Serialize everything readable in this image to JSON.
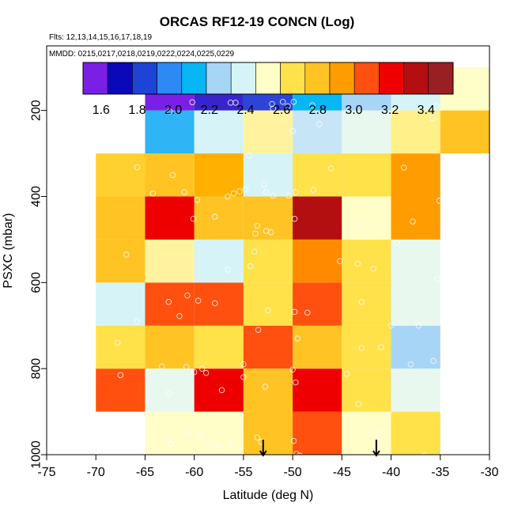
{
  "chart_data": {
    "type": "heatmap",
    "title": "ORCAS RF12-19 CONCN (Log)",
    "flights_label": "Flts: 12,13,14,15,16,17,18,19",
    "dates_label": "MMDD: 0215,0217,0218,0219,0222,0224,0225,0229",
    "xlabel": "Latitude (deg N)",
    "ylabel": "PSXC (mbar)",
    "xlim": [
      -75,
      -30
    ],
    "ylim": [
      1000,
      50
    ],
    "x_ticks": [
      -75,
      -70,
      -65,
      -60,
      -55,
      -50,
      -45,
      -40,
      -35,
      -30
    ],
    "x_tick_labels": [
      "-75",
      "-70",
      "-65",
      "-60",
      "-55",
      "-50",
      "-45",
      "-40",
      "-35",
      "-30"
    ],
    "y_ticks": [
      200,
      400,
      600,
      800,
      1000
    ],
    "y_tick_labels": [
      "200",
      "400",
      "600",
      "800",
      "1000"
    ],
    "colorbar": {
      "colors": [
        "#7a1fe6",
        "#0a08b8",
        "#1d44d6",
        "#2d8af5",
        "#06b6f5",
        "#a7d5f6",
        "#d6f3f8",
        "#fffdc8",
        "#ffe14a",
        "#ffc424",
        "#ff9d00",
        "#ff5010",
        "#ee0000",
        "#b30e10",
        "#9a1f22"
      ],
      "tick_values": [
        1.6,
        1.8,
        2.0,
        2.2,
        2.4,
        2.6,
        2.8,
        3.0,
        3.2,
        3.4
      ],
      "tick_labels": [
        "1.6",
        "1.8",
        "2.0",
        "2.2",
        "2.4",
        "2.6",
        "2.8",
        "3.0",
        "3.2",
        "3.4"
      ],
      "range": [
        1.5,
        3.55
      ]
    },
    "lat_bins": [
      -70,
      -65,
      -60,
      -55,
      -50,
      -45,
      -40,
      -35,
      -30
    ],
    "p_bins": [
      1000,
      900,
      800,
      700,
      600,
      500,
      400,
      300,
      200,
      100
    ],
    "cells": [
      [
        null,
        "#fffdc8",
        "#fffdc8",
        "#ffc424",
        "#ff5010",
        "#fffdc8",
        "#ffe14a",
        null
      ],
      [
        "#ff5010",
        "#e8f8ee",
        "#ee0000",
        "#ffc424",
        "#ee0000",
        "#ffe14a",
        "#e8f8ee",
        null
      ],
      [
        "#ffe14a",
        "#ffc424",
        "#ffe14a",
        "#ff5010",
        "#ffc424",
        "#ffe14a",
        "#a7d5f6",
        null
      ],
      [
        "#d6f3f8",
        "#ff5010",
        "#ff5010",
        "#ffe14a",
        "#ff5010",
        "#ffe14a",
        "#e8f8ee",
        null
      ],
      [
        "#ffc424",
        "#fff3a0",
        "#d6f3f8",
        "#ffe14a",
        "#ff8a00",
        "#ffe14a",
        "#e8f8ee",
        null
      ],
      [
        "#ffc424",
        "#ee0000",
        "#ffc424",
        "#ffc424",
        "#b30e10",
        "#fffdc8",
        "#ff9d00",
        null
      ],
      [
        "#ffd030",
        "#ffc424",
        "#ffb000",
        "#d6f3f8",
        "#ffe14a",
        "#ffe14a",
        "#ff9d00",
        null
      ],
      [
        null,
        "#2fb4f5",
        "#d6f3f8",
        "#fff3a0",
        "#c6e6f8",
        "#e8f8ee",
        "#fff08a",
        "#ffc424"
      ],
      [
        null,
        "#7a1fe6",
        "#3824cc",
        "#2d44d6",
        "#06b6f5",
        "#a7d5f6",
        "#d6f3f8",
        "#fffdc8"
      ]
    ],
    "points": [
      {
        "lat": -68.5,
        "p": 960
      },
      {
        "lat": -66.5,
        "p": 962
      },
      {
        "lat": -62.7,
        "p": 968
      },
      {
        "lat": -62.4,
        "p": 975
      },
      {
        "lat": -60.6,
        "p": 948
      },
      {
        "lat": -59.4,
        "p": 955
      },
      {
        "lat": -58.5,
        "p": 970
      },
      {
        "lat": -57.8,
        "p": 978
      },
      {
        "lat": -57.4,
        "p": 982
      },
      {
        "lat": -56.4,
        "p": 975
      },
      {
        "lat": -53.6,
        "p": 960
      },
      {
        "lat": -53.2,
        "p": 970
      },
      {
        "lat": -49.9,
        "p": 968
      },
      {
        "lat": -49.6,
        "p": 998
      },
      {
        "lat": -49.3,
        "p": 1002
      },
      {
        "lat": -41.2,
        "p": 950
      },
      {
        "lat": -36.6,
        "p": 1002
      },
      {
        "lat": -67.5,
        "p": 815
      },
      {
        "lat": -62.6,
        "p": 857
      },
      {
        "lat": -60.0,
        "p": 808
      },
      {
        "lat": -59.2,
        "p": 800
      },
      {
        "lat": -58.8,
        "p": 810
      },
      {
        "lat": -57.2,
        "p": 850
      },
      {
        "lat": -55.0,
        "p": 820
      },
      {
        "lat": -52.8,
        "p": 842
      },
      {
        "lat": -50.0,
        "p": 802
      },
      {
        "lat": -49.7,
        "p": 832
      },
      {
        "lat": -44.5,
        "p": 812
      },
      {
        "lat": -43.3,
        "p": 882
      },
      {
        "lat": -67.8,
        "p": 740
      },
      {
        "lat": -63.3,
        "p": 795
      },
      {
        "lat": -60.8,
        "p": 796
      },
      {
        "lat": -55.0,
        "p": 790
      },
      {
        "lat": -49.5,
        "p": 730
      },
      {
        "lat": -43.0,
        "p": 752
      },
      {
        "lat": -41.0,
        "p": 750
      },
      {
        "lat": -38.0,
        "p": 790
      },
      {
        "lat": -35.7,
        "p": 782
      },
      {
        "lat": -65.8,
        "p": 690
      },
      {
        "lat": -62.6,
        "p": 645
      },
      {
        "lat": -61.5,
        "p": 678
      },
      {
        "lat": -60.7,
        "p": 630
      },
      {
        "lat": -59.6,
        "p": 642
      },
      {
        "lat": -57.9,
        "p": 648
      },
      {
        "lat": -53.5,
        "p": 710
      },
      {
        "lat": -52.5,
        "p": 665
      },
      {
        "lat": -49.8,
        "p": 668
      },
      {
        "lat": -48.5,
        "p": 670
      },
      {
        "lat": -43.0,
        "p": 645
      },
      {
        "lat": -40.0,
        "p": 700
      },
      {
        "lat": -37.2,
        "p": 700
      },
      {
        "lat": -66.9,
        "p": 535
      },
      {
        "lat": -56.6,
        "p": 570
      },
      {
        "lat": -54.3,
        "p": 562
      },
      {
        "lat": -53.9,
        "p": 528
      },
      {
        "lat": -45.2,
        "p": 550
      },
      {
        "lat": -43.4,
        "p": 556
      },
      {
        "lat": -41.8,
        "p": 568
      },
      {
        "lat": -35.3,
        "p": 592
      },
      {
        "lat": -60.1,
        "p": 452
      },
      {
        "lat": -57.9,
        "p": 447
      },
      {
        "lat": -53.6,
        "p": 468
      },
      {
        "lat": -53.8,
        "p": 486
      },
      {
        "lat": -52.7,
        "p": 480
      },
      {
        "lat": -52.2,
        "p": 483
      },
      {
        "lat": -49.8,
        "p": 452
      },
      {
        "lat": -43.3,
        "p": 466
      },
      {
        "lat": -39.4,
        "p": 508
      },
      {
        "lat": -37.8,
        "p": 458
      },
      {
        "lat": -65.8,
        "p": 332
      },
      {
        "lat": -64.2,
        "p": 393
      },
      {
        "lat": -62.2,
        "p": 350
      },
      {
        "lat": -61.0,
        "p": 390
      },
      {
        "lat": -59.7,
        "p": 408
      },
      {
        "lat": -56.6,
        "p": 400
      },
      {
        "lat": -56.0,
        "p": 393
      },
      {
        "lat": -55.4,
        "p": 388
      },
      {
        "lat": -54.8,
        "p": 383
      },
      {
        "lat": -52.9,
        "p": 372
      },
      {
        "lat": -52.7,
        "p": 390
      },
      {
        "lat": -52.0,
        "p": 398
      },
      {
        "lat": -50.4,
        "p": 398
      },
      {
        "lat": -49.7,
        "p": 390
      },
      {
        "lat": -47.9,
        "p": 385
      },
      {
        "lat": -46.1,
        "p": 335
      },
      {
        "lat": -38.7,
        "p": 333
      },
      {
        "lat": -35.1,
        "p": 410
      },
      {
        "lat": -54.4,
        "p": 305
      },
      {
        "lat": -50.0,
        "p": 248
      },
      {
        "lat": -47.3,
        "p": 232
      },
      {
        "lat": -35.8,
        "p": 218
      },
      {
        "lat": -62.5,
        "p": 202
      },
      {
        "lat": -60.2,
        "p": 181
      },
      {
        "lat": -56.3,
        "p": 182
      },
      {
        "lat": -55.8,
        "p": 182
      },
      {
        "lat": -52.1,
        "p": 185
      },
      {
        "lat": -52.0,
        "p": 196
      },
      {
        "lat": -51.0,
        "p": 180
      },
      {
        "lat": -50.5,
        "p": 190
      },
      {
        "lat": -49.9,
        "p": 180
      },
      {
        "lat": -48.0,
        "p": 188
      },
      {
        "lat": -35.4,
        "p": 190
      }
    ],
    "arrows_lat": [
      -53.0,
      -41.5
    ],
    "grid": false
  }
}
